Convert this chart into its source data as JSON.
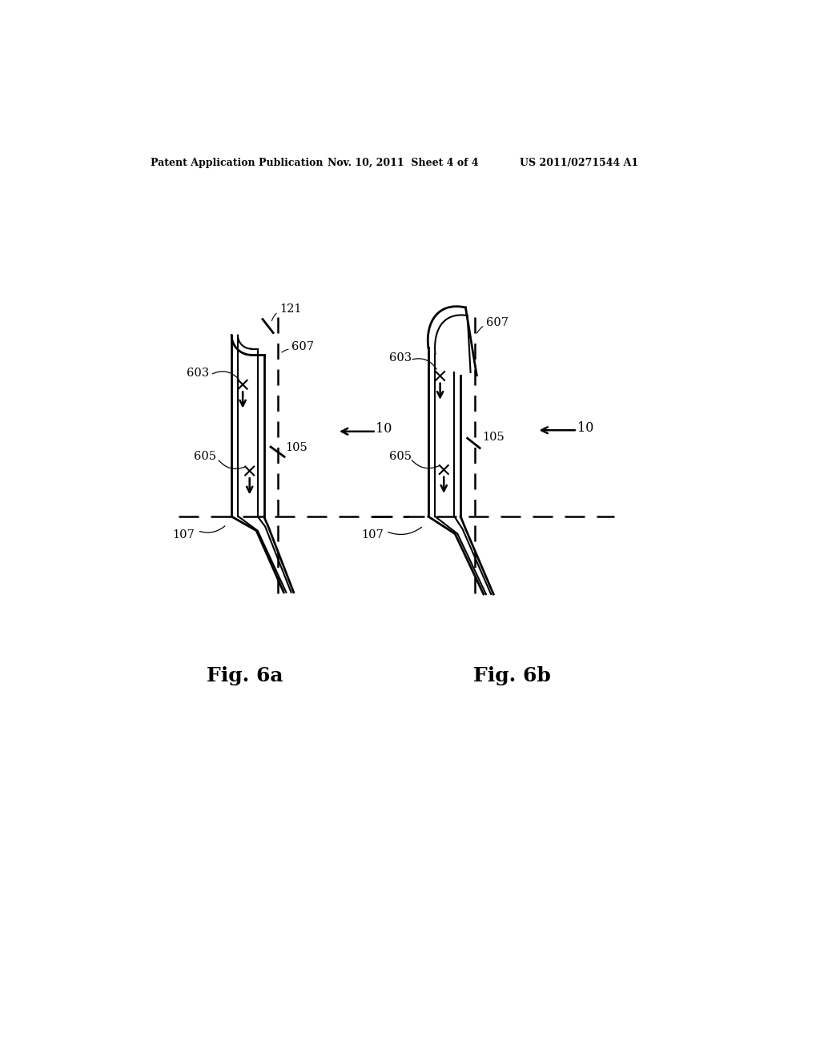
{
  "bg_color": "#ffffff",
  "header_text": "Patent Application Publication",
  "header_date": "Nov. 10, 2011  Sheet 4 of 4",
  "header_patent": "US 2011/0271544 A1",
  "fig6a_title": "Fig. 6a",
  "fig6b_title": "Fig. 6b",
  "label_121": "121",
  "label_607a": "607",
  "label_603a": "603",
  "label_105a": "105",
  "label_605a": "605",
  "label_107a": "107",
  "label_10a": "10",
  "label_607b": "607",
  "label_603b": "603",
  "label_105b": "105",
  "label_605b": "605",
  "label_107b": "107",
  "label_10b": "10",
  "header_font_size": 9,
  "label_font_size": 10.5,
  "fig_title_font_size": 18
}
